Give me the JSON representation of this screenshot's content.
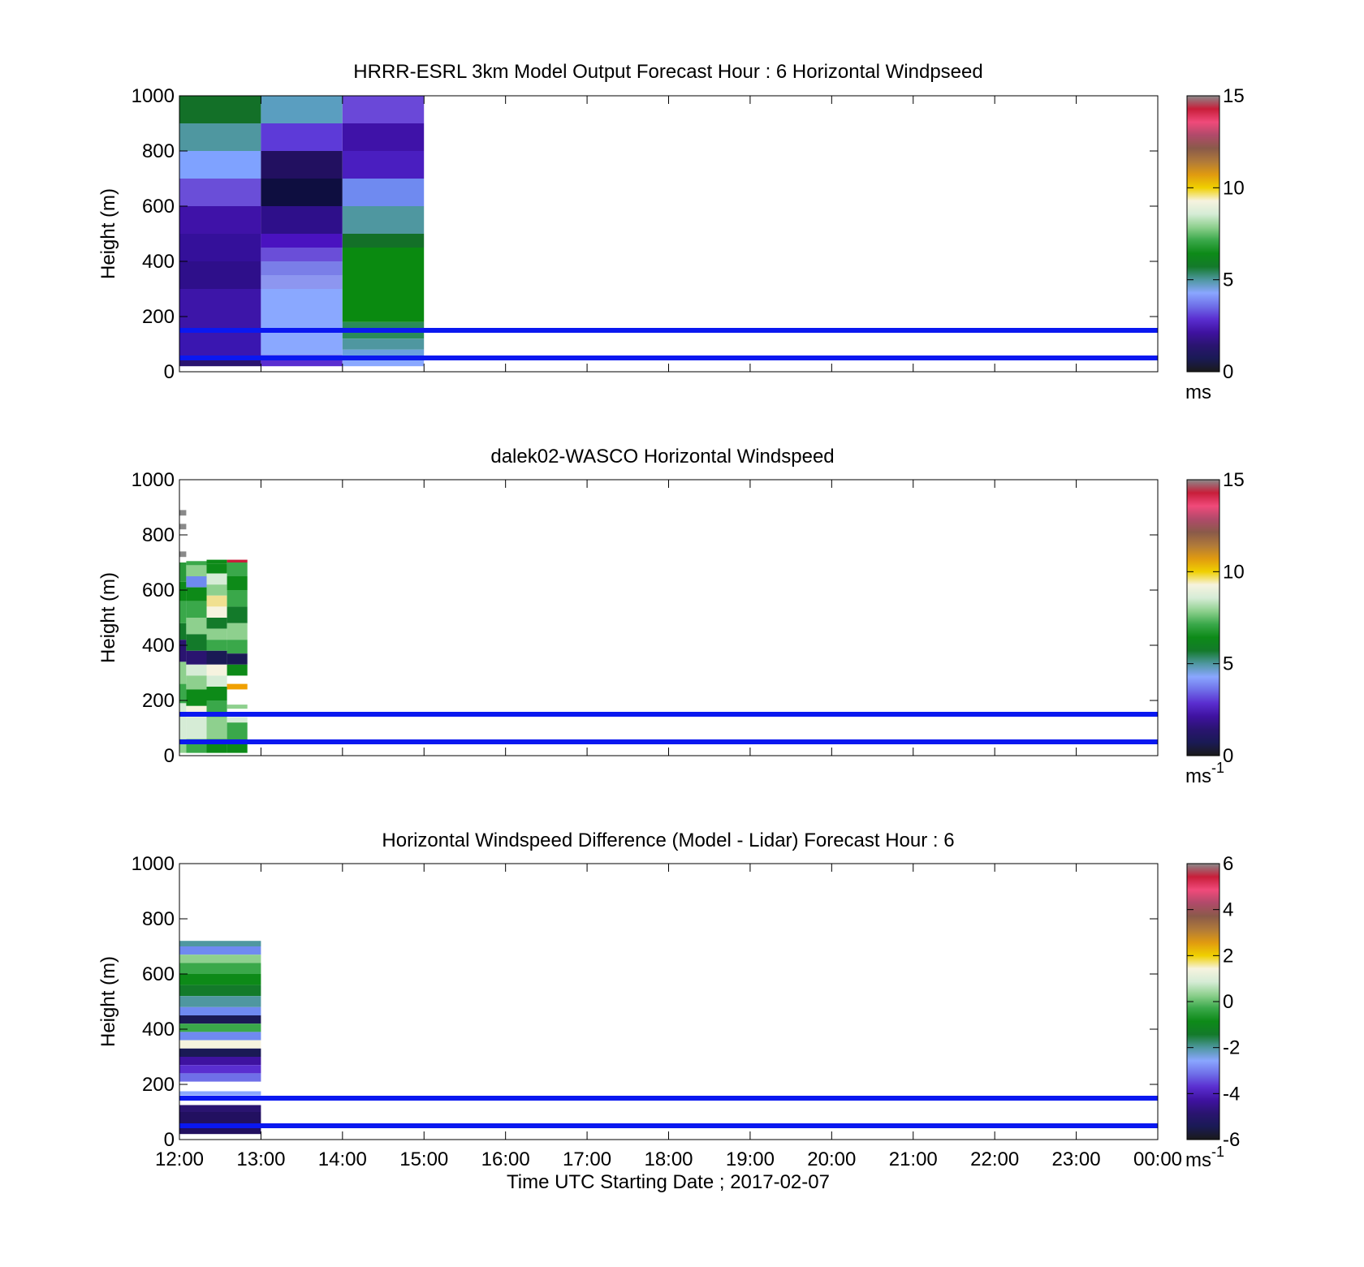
{
  "colorbar_palette": [
    "#1a1a1a",
    "#1a1a55",
    "#2a1470",
    "#3f12a0",
    "#5a2ed0",
    "#6f6fe8",
    "#8aa6ff",
    "#4f97a0",
    "#137a2a",
    "#0d8a18",
    "#3aa84a",
    "#8ed08e",
    "#d6ecd6",
    "#f6f3df",
    "#f0d000",
    "#e09a10",
    "#b07a3a",
    "#8a5a4a",
    "#b04a6a",
    "#f04a7a",
    "#c81e3a",
    "#8a8a8a"
  ],
  "chart_data": [
    {
      "type": "heatmap",
      "title": "HRRR-ESRL 3km Model Output   Forecast Hour : 6 Horizontal Windpseed",
      "ylabel": "Height (m)",
      "xlabel": "",
      "xlim": [
        "12:00",
        "00:00"
      ],
      "ylim": [
        0,
        1000
      ],
      "yticks": [
        0,
        200,
        400,
        600,
        800,
        1000
      ],
      "colorbar": {
        "min": 0,
        "max": 15,
        "ticks": [
          0,
          5,
          10,
          15
        ],
        "unit_base": "ms",
        "unit_sup": ""
      },
      "reference_lines_m": [
        50,
        150
      ],
      "columns": [
        {
          "start": "12:00",
          "end": "13:00",
          "cells": [
            [
              900,
              1000,
              "#137028"
            ],
            [
              800,
              900,
              "#4f97a0"
            ],
            [
              700,
              800,
              "#7fa2ff"
            ],
            [
              600,
              700,
              "#6a4ed8"
            ],
            [
              500,
              600,
              "#3f12a8"
            ],
            [
              400,
              500,
              "#34109a"
            ],
            [
              300,
              400,
              "#2e0f8a"
            ],
            [
              150,
              300,
              "#3d15a8"
            ],
            [
              50,
              150,
              "#3a16b0"
            ],
            [
              20,
              50,
              "#2a1470"
            ]
          ]
        },
        {
          "start": "13:00",
          "end": "14:00",
          "cells": [
            [
              900,
              1000,
              "#5a9ec0"
            ],
            [
              800,
              900,
              "#5d3ad8"
            ],
            [
              700,
              800,
              "#221060"
            ],
            [
              600,
              700,
              "#0e0e40"
            ],
            [
              500,
              600,
              "#2e0f8a"
            ],
            [
              450,
              500,
              "#4a12c0"
            ],
            [
              400,
              450,
              "#6a4ed8"
            ],
            [
              350,
              400,
              "#7a7ee8"
            ],
            [
              300,
              350,
              "#8d96f0"
            ],
            [
              150,
              300,
              "#8aa8ff"
            ],
            [
              60,
              150,
              "#8aa8ff"
            ],
            [
              20,
              60,
              "#5a2ed0"
            ]
          ]
        },
        {
          "start": "14:00",
          "end": "15:00",
          "cells": [
            [
              900,
              1000,
              "#6a48d8"
            ],
            [
              800,
              900,
              "#3f12a8"
            ],
            [
              700,
              800,
              "#4a1ec0"
            ],
            [
              600,
              700,
              "#6f8af0"
            ],
            [
              500,
              600,
              "#4f97a0"
            ],
            [
              450,
              500,
              "#137028"
            ],
            [
              180,
              450,
              "#0a8a10"
            ],
            [
              120,
              180,
              "#2a8a5a"
            ],
            [
              80,
              120,
              "#4f97a0"
            ],
            [
              40,
              80,
              "#6aa0e0"
            ],
            [
              20,
              40,
              "#8aa8ff"
            ]
          ]
        }
      ]
    },
    {
      "type": "heatmap",
      "title": "dalek02-WASCO  Horizontal Windspeed",
      "ylabel": "Height (m)",
      "xlabel": "",
      "xlim": [
        "12:00",
        "00:00"
      ],
      "ylim": [
        0,
        1000
      ],
      "yticks": [
        0,
        200,
        400,
        600,
        800,
        1000
      ],
      "colorbar": {
        "min": 0,
        "max": 15,
        "ticks": [
          0,
          5,
          10,
          15
        ],
        "unit_base": "ms",
        "unit_sup": "-1"
      },
      "reference_lines_m": [
        50,
        150
      ],
      "columns": [
        {
          "start": "12:00",
          "end": "12:05",
          "cells": [
            [
              870,
              890,
              "#8a8a8a"
            ],
            [
              820,
              840,
              "#8a8a8a"
            ],
            [
              720,
              740,
              "#8a8a8a"
            ],
            [
              630,
              700,
              "#2a9a3a"
            ],
            [
              560,
              630,
              "#0d8a18"
            ],
            [
              480,
              560,
              "#3aa84a"
            ],
            [
              420,
              480,
              "#137a2a"
            ],
            [
              340,
              420,
              "#2a1470"
            ],
            [
              260,
              340,
              "#8ed08e"
            ],
            [
              190,
              260,
              "#3aa84a"
            ],
            [
              150,
              190,
              "#d6ecd6"
            ],
            [
              60,
              150,
              "#d6ecd6"
            ],
            [
              10,
              60,
              "#8ed08e"
            ]
          ]
        },
        {
          "start": "12:05",
          "end": "12:20",
          "cells": [
            [
              690,
              705,
              "#3aa84a"
            ],
            [
              650,
              690,
              "#8ed08e"
            ],
            [
              610,
              650,
              "#6f8af0"
            ],
            [
              560,
              610,
              "#0d8a18"
            ],
            [
              500,
              560,
              "#3aa84a"
            ],
            [
              440,
              500,
              "#8ed08e"
            ],
            [
              380,
              440,
              "#137a2a"
            ],
            [
              330,
              380,
              "#2a1470"
            ],
            [
              290,
              330,
              "#d6ecd6"
            ],
            [
              240,
              290,
              "#8ed08e"
            ],
            [
              180,
              240,
              "#0d8a18"
            ],
            [
              140,
              180,
              "#f6f3df"
            ],
            [
              60,
              140,
              "#d6ecd6"
            ],
            [
              10,
              60,
              "#3aa84a"
            ]
          ]
        },
        {
          "start": "12:20",
          "end": "12:35",
          "cells": [
            [
              695,
              710,
              "#0d8a18"
            ],
            [
              660,
              695,
              "#0d8a18"
            ],
            [
              620,
              660,
              "#d6ecd6"
            ],
            [
              580,
              620,
              "#8ed08e"
            ],
            [
              540,
              580,
              "#f0e090"
            ],
            [
              500,
              540,
              "#f6f3df"
            ],
            [
              460,
              500,
              "#137a2a"
            ],
            [
              420,
              460,
              "#8ed08e"
            ],
            [
              380,
              420,
              "#3aa84a"
            ],
            [
              330,
              380,
              "#1a1a55"
            ],
            [
              290,
              330,
              "#f6f3df"
            ],
            [
              250,
              290,
              "#d6ecd6"
            ],
            [
              200,
              250,
              "#0d8a18"
            ],
            [
              140,
              200,
              "#3aa84a"
            ],
            [
              60,
              140,
              "#8ed08e"
            ],
            [
              10,
              60,
              "#0d8a18"
            ]
          ]
        },
        {
          "start": "12:35",
          "end": "12:50",
          "cells": [
            [
              700,
              710,
              "#c81e3a"
            ],
            [
              650,
              700,
              "#3aa84a"
            ],
            [
              600,
              650,
              "#0d8a18"
            ],
            [
              540,
              600,
              "#3aa84a"
            ],
            [
              480,
              540,
              "#137a2a"
            ],
            [
              420,
              480,
              "#8ed08e"
            ],
            [
              370,
              420,
              "#3aa84a"
            ],
            [
              330,
              370,
              "#1a1a55"
            ],
            [
              290,
              330,
              "#0d8a18"
            ],
            [
              240,
              260,
              "#f0a000"
            ],
            [
              170,
              185,
              "#8ed08e"
            ],
            [
              120,
              140,
              "#d6ecd6"
            ],
            [
              60,
              120,
              "#3aa84a"
            ],
            [
              10,
              60,
              "#0d8a18"
            ]
          ]
        }
      ]
    },
    {
      "type": "heatmap",
      "title": "Horizontal Windspeed Difference (Model - Lidar) Forecast Hour : 6",
      "ylabel": "Height (m)",
      "xlabel": "Time UTC  Starting Date ; 2017-02-07",
      "xticks": [
        "12:00",
        "13:00",
        "14:00",
        "15:00",
        "16:00",
        "17:00",
        "18:00",
        "19:00",
        "20:00",
        "21:00",
        "22:00",
        "23:00",
        "00:00"
      ],
      "xlim": [
        "12:00",
        "00:00"
      ],
      "ylim": [
        0,
        1000
      ],
      "yticks": [
        0,
        200,
        400,
        600,
        800,
        1000
      ],
      "colorbar": {
        "min": -6,
        "max": 6,
        "ticks": [
          -6,
          -4,
          -2,
          0,
          2,
          4,
          6
        ],
        "unit_base": "ms",
        "unit_sup": "-1"
      },
      "reference_lines_m": [
        50,
        150
      ],
      "columns": [
        {
          "start": "12:00",
          "end": "13:00",
          "cells": [
            [
              700,
              720,
              "#4f97a0"
            ],
            [
              670,
              700,
              "#6f8af0"
            ],
            [
              640,
              670,
              "#8ed08e"
            ],
            [
              600,
              640,
              "#3aa84a"
            ],
            [
              560,
              600,
              "#0d8a18"
            ],
            [
              520,
              560,
              "#137a2a"
            ],
            [
              480,
              520,
              "#4f97a0"
            ],
            [
              450,
              480,
              "#6f8af0"
            ],
            [
              420,
              450,
              "#1a1a55"
            ],
            [
              390,
              420,
              "#3aa84a"
            ],
            [
              360,
              390,
              "#6f8af0"
            ],
            [
              330,
              360,
              "#f6f3df"
            ],
            [
              300,
              330,
              "#1a1a55"
            ],
            [
              270,
              300,
              "#3f12a0"
            ],
            [
              240,
              270,
              "#5a2ed0"
            ],
            [
              210,
              240,
              "#6f6fe8"
            ],
            [
              160,
              175,
              "#8aa6ff"
            ],
            [
              100,
              125,
              "#2a1470"
            ],
            [
              20,
              100,
              "#221060"
            ]
          ]
        }
      ]
    }
  ]
}
